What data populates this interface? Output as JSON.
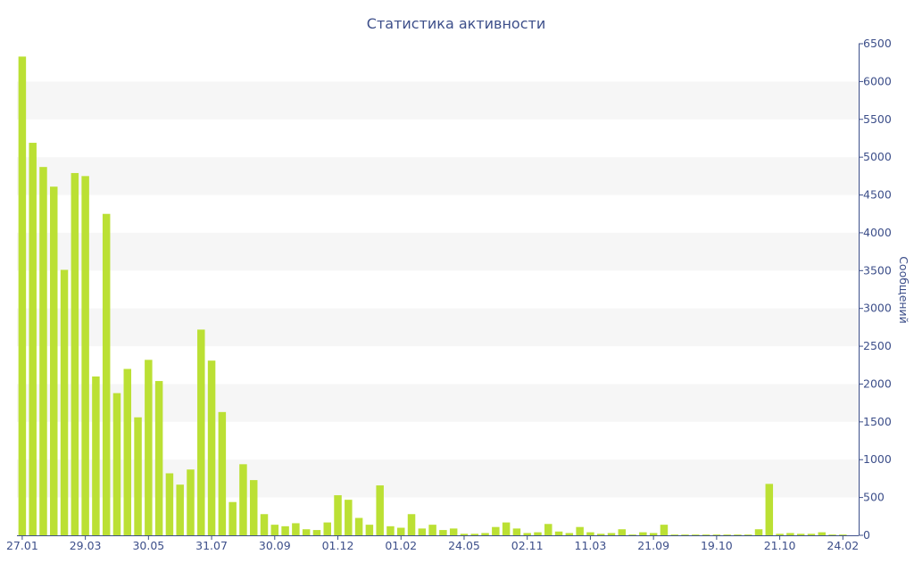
{
  "chart_data": {
    "type": "bar",
    "title": "Статистика активности",
    "xlabel": "",
    "ylabel": "Сообщений",
    "ylim": [
      0,
      6500
    ],
    "y_axis_position": "right",
    "y_ticks": [
      "0",
      "500",
      "1000",
      "1500",
      "2000",
      "2500",
      "3000",
      "3500",
      "4000",
      "4500",
      "5000",
      "5500",
      "6000",
      "6500"
    ],
    "grid": "alternating horizontal bands",
    "legend": "none",
    "x_tick_labels": [
      {
        "index": 0,
        "label": "27.01"
      },
      {
        "index": 6,
        "label": "29.03"
      },
      {
        "index": 12,
        "label": "30.05"
      },
      {
        "index": 18,
        "label": "31.07"
      },
      {
        "index": 24,
        "label": "30.09"
      },
      {
        "index": 30,
        "label": "01.12"
      },
      {
        "index": 36,
        "label": "01.02"
      },
      {
        "index": 42,
        "label": "24.05"
      },
      {
        "index": 48,
        "label": "02.11"
      },
      {
        "index": 54,
        "label": "11.03"
      },
      {
        "index": 60,
        "label": "21.09"
      },
      {
        "index": 66,
        "label": "19.10"
      },
      {
        "index": 72,
        "label": "21.10"
      },
      {
        "index": 78,
        "label": "24.02"
      }
    ],
    "values": [
      6330,
      5190,
      4870,
      4610,
      3510,
      4790,
      4750,
      2100,
      4250,
      1880,
      2200,
      1560,
      2320,
      2040,
      820,
      670,
      870,
      2720,
      2310,
      1630,
      440,
      940,
      730,
      280,
      140,
      120,
      160,
      80,
      70,
      170,
      530,
      470,
      230,
      140,
      660,
      120,
      100,
      280,
      90,
      140,
      70,
      90,
      20,
      20,
      30,
      110,
      170,
      90,
      30,
      40,
      150,
      50,
      30,
      110,
      40,
      20,
      30,
      80,
      10,
      40,
      30,
      140,
      10,
      10,
      10,
      10,
      10,
      10,
      10,
      10,
      80,
      680,
      20,
      30,
      20,
      20,
      40,
      10,
      10,
      0
    ],
    "colors": {
      "bar": "#bbe034",
      "text": "#3d4f8a",
      "band": "#f6f6f6",
      "axis": "#3d4f8a"
    }
  }
}
